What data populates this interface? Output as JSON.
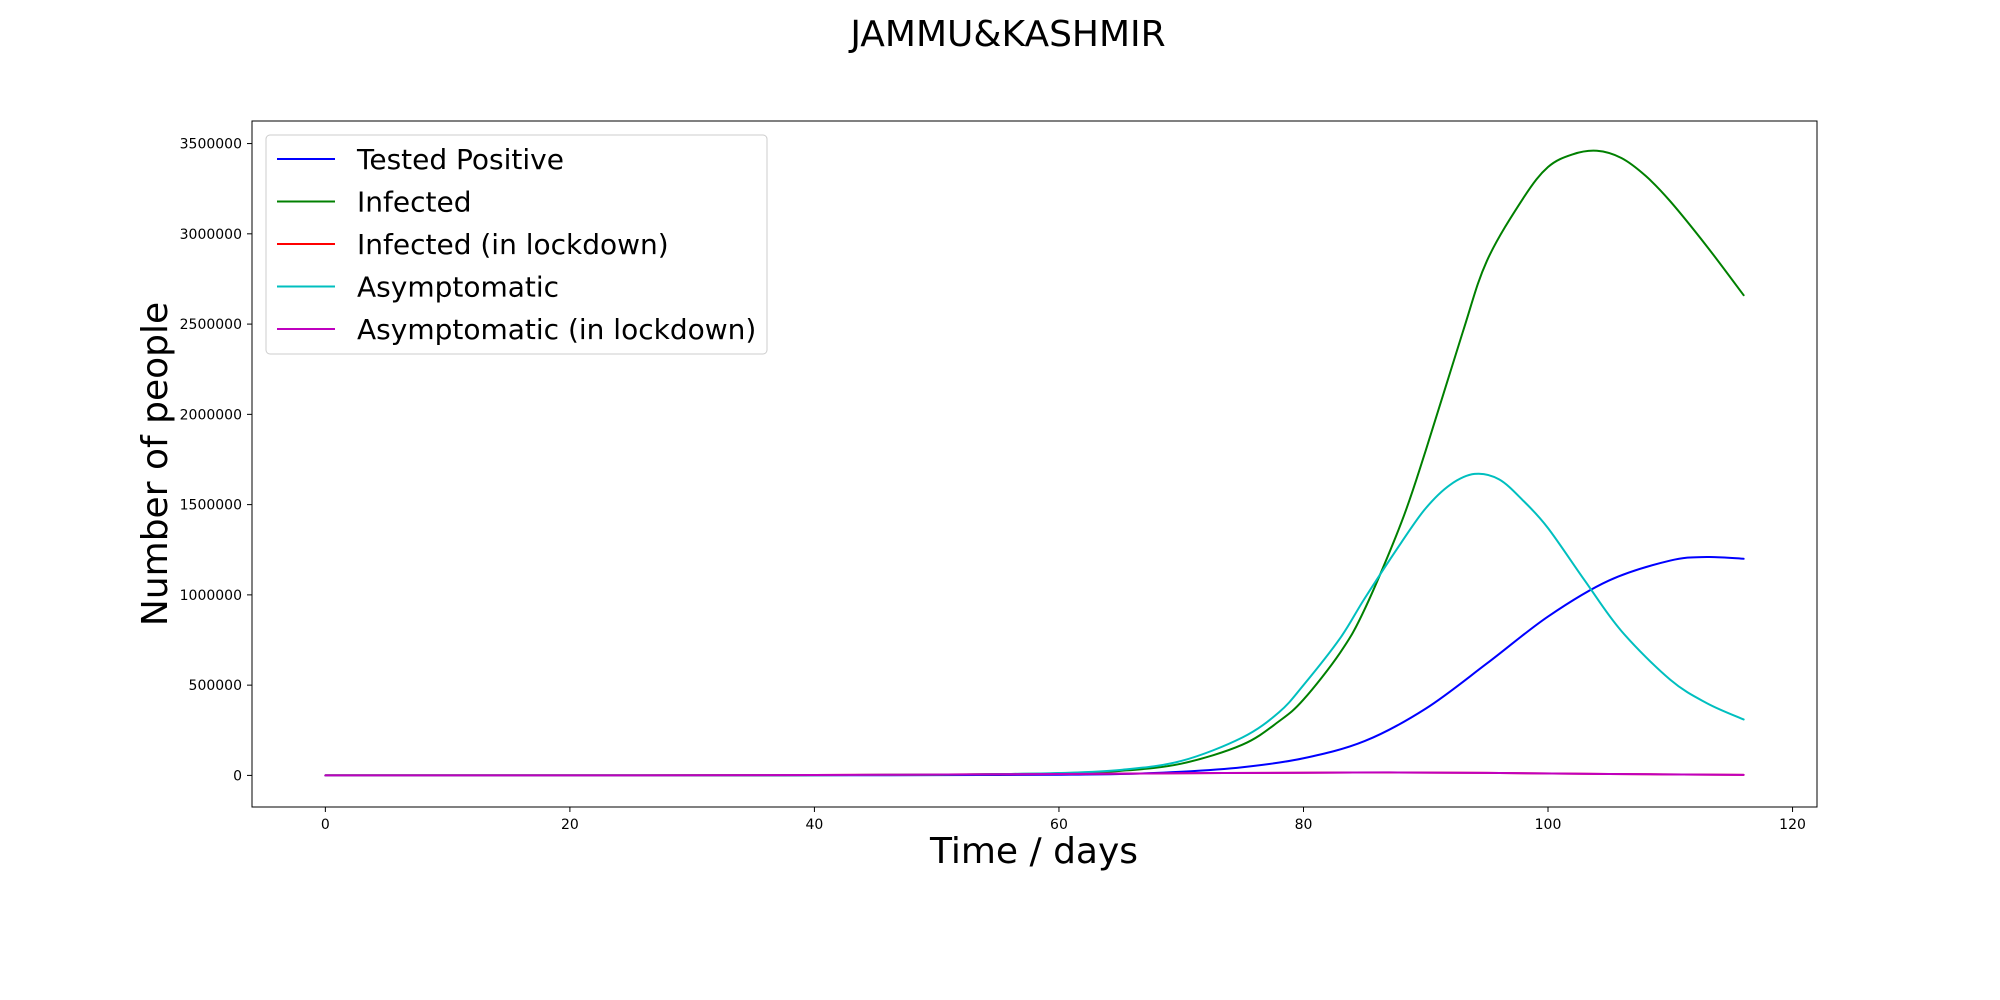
{
  "chart_data": {
    "type": "line",
    "title": "JAMMU&KASHMIR",
    "xlabel": "Time / days",
    "ylabel": "Number of people",
    "xlim": [
      -6,
      122
    ],
    "ylim": [
      -175000,
      3625000
    ],
    "xticks": [
      0,
      20,
      40,
      60,
      80,
      100,
      120
    ],
    "yticks": [
      0,
      500000,
      1000000,
      1500000,
      2000000,
      2500000,
      3000000,
      3500000
    ],
    "grid": false,
    "legend_position": "upper-left",
    "series": [
      {
        "name": "Tested Positive",
        "color": "#0000ff",
        "x": [
          0,
          20,
          40,
          50,
          55,
          60,
          65,
          70,
          75,
          80,
          85,
          90,
          95,
          100,
          105,
          110,
          113,
          116
        ],
        "y": [
          0,
          100,
          600,
          1500,
          2500,
          4000,
          8000,
          20000,
          45000,
          95000,
          190000,
          370000,
          620000,
          880000,
          1080000,
          1190000,
          1210000,
          1200000
        ]
      },
      {
        "name": "Infected",
        "color": "#008000",
        "x": [
          0,
          20,
          40,
          50,
          55,
          60,
          65,
          70,
          75,
          78,
          80,
          83,
          85,
          88,
          90,
          93,
          95,
          98,
          100,
          102,
          104,
          106,
          108,
          110,
          113,
          116
        ],
        "y": [
          0,
          200,
          1500,
          4000,
          7000,
          12000,
          25000,
          65000,
          170000,
          300000,
          420000,
          680000,
          920000,
          1400000,
          1800000,
          2450000,
          2850000,
          3200000,
          3370000,
          3440000,
          3460000,
          3420000,
          3320000,
          3180000,
          2930000,
          2660000
        ]
      },
      {
        "name": "Infected (in lockdown)",
        "color": "#ff0000",
        "x": [
          0,
          20,
          40,
          60,
          70,
          80,
          87,
          95,
          105,
          116
        ],
        "y": [
          0,
          200,
          2000,
          8000,
          12000,
          15000,
          16000,
          14000,
          8000,
          3000
        ]
      },
      {
        "name": "Asymptomatic",
        "color": "#00bfbf",
        "x": [
          0,
          20,
          40,
          50,
          55,
          60,
          65,
          70,
          75,
          78,
          80,
          83,
          85,
          88,
          90,
          92,
          94,
          96,
          98,
          100,
          103,
          106,
          110,
          113,
          116
        ],
        "y": [
          0,
          200,
          1500,
          4000,
          7000,
          13000,
          30000,
          80000,
          210000,
          350000,
          500000,
          760000,
          980000,
          1290000,
          1480000,
          1610000,
          1670000,
          1640000,
          1520000,
          1370000,
          1080000,
          800000,
          530000,
          400000,
          310000
        ]
      },
      {
        "name": "Asymptomatic (in lockdown)",
        "color": "#bf00bf",
        "x": [
          0,
          20,
          40,
          60,
          70,
          80,
          87,
          95,
          105,
          116
        ],
        "y": [
          0,
          200,
          2000,
          8000,
          12000,
          15000,
          16500,
          14000,
          8000,
          3000
        ]
      }
    ]
  }
}
